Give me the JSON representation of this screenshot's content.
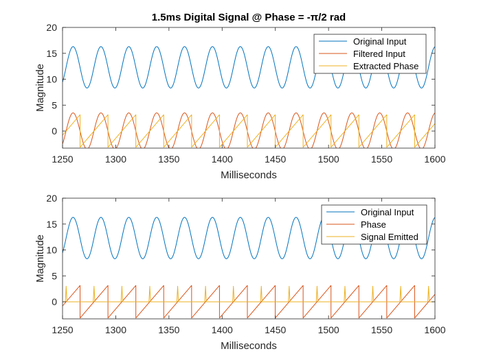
{
  "chart_data": [
    {
      "type": "line",
      "title": "1.5ms Digital Signal @ Phase = -π/2 rad",
      "xlabel": "Milliseconds",
      "ylabel": "Magnitude",
      "xlim": [
        1250,
        1600
      ],
      "ylim": [
        -3.3,
        20
      ],
      "xticks": [
        "1250",
        "1300",
        "1350",
        "1400",
        "1450",
        "1500",
        "1550",
        "1600"
      ],
      "yticks": [
        "0",
        "5",
        "10",
        "15",
        "20"
      ],
      "legend_position": "top-right",
      "period_ms": 26.2,
      "series": [
        {
          "name": "Original Input",
          "color": "#0072BD",
          "kind": "sine",
          "offset": 12.3,
          "amplitude": 4.0,
          "crest_at": 1259.9
        },
        {
          "name": "Filtered Input",
          "color": "#D95319",
          "kind": "sine",
          "offset": 0.0,
          "amplitude": 3.5,
          "crest_at": 1259.9
        },
        {
          "name": "Extracted Phase",
          "color": "#EDB120",
          "kind": "sawtooth",
          "min": -3.14,
          "max": 3.14,
          "wrap_at": 1266.5
        }
      ]
    },
    {
      "type": "line",
      "title": "",
      "xlabel": "Milliseconds",
      "ylabel": "Magnitude",
      "xlim": [
        1250,
        1600
      ],
      "ylim": [
        -3.3,
        20
      ],
      "xticks": [
        "1250",
        "1300",
        "1350",
        "1400",
        "1450",
        "1500",
        "1550",
        "1600"
      ],
      "yticks": [
        "0",
        "5",
        "10",
        "15",
        "20"
      ],
      "legend_position": "top-right",
      "period_ms": 26.2,
      "series": [
        {
          "name": "Original Input",
          "color": "#0072BD",
          "kind": "sine",
          "offset": 12.3,
          "amplitude": 4.0,
          "crest_at": 1259.9
        },
        {
          "name": "Phase",
          "color": "#D95319",
          "kind": "sawtooth",
          "min": -3.14,
          "max": 3.14,
          "wrap_at": 1266.5
        },
        {
          "name": "Signal Emitted",
          "color": "#EDB120",
          "kind": "pulse",
          "baseline": 0,
          "peak": 3.0,
          "width_ms": 1.5,
          "pulse_at": 1253.4
        }
      ]
    }
  ]
}
